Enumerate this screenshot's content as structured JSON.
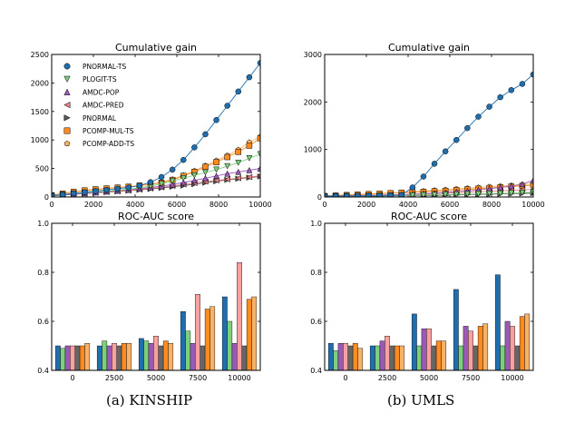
{
  "captions": {
    "left": "(a) KINSHIP",
    "right": "(b) UMLS"
  },
  "legend": [
    "PNORMAL-TS",
    "PLOGIT-TS",
    "AMDC-POP",
    "AMDC-PRED",
    "PNORMAL",
    "PCOMP-MUL-TS",
    "PCOMP-ADD-TS"
  ],
  "chart_data": [
    {
      "panel": "kinship-gain",
      "type": "line",
      "title": "Cumulative gain",
      "xlim": [
        0,
        10000
      ],
      "ylim": [
        0,
        2500
      ],
      "xticks": [
        "0",
        "2000",
        "4000",
        "6000",
        "8000",
        "10000"
      ],
      "yticks": [
        "0",
        "500",
        "1000",
        "1500",
        "2000",
        "2500"
      ],
      "legend_loc": "upper-left",
      "x": [
        0,
        526,
        1053,
        1579,
        2105,
        2632,
        3158,
        3684,
        4211,
        4737,
        5263,
        5789,
        6316,
        6842,
        7368,
        7895,
        8421,
        8947,
        9474,
        10000
      ],
      "series": [
        {
          "name": "PNORMAL-TS",
          "color": "#1f6faf",
          "marker": "circle",
          "values": [
            20,
            40,
            65,
            85,
            105,
            125,
            145,
            165,
            200,
            260,
            350,
            480,
            650,
            870,
            1100,
            1350,
            1600,
            1850,
            2100,
            2350
          ]
        },
        {
          "name": "PLOGIT-TS",
          "color": "#7cd07c",
          "marker": "tri-down",
          "values": [
            20,
            40,
            60,
            75,
            90,
            105,
            120,
            135,
            160,
            190,
            230,
            280,
            330,
            380,
            430,
            480,
            540,
            600,
            680,
            750
          ]
        },
        {
          "name": "AMDC-POP",
          "color": "#9b59b6",
          "marker": "tri-up",
          "values": [
            20,
            35,
            50,
            65,
            80,
            95,
            110,
            125,
            145,
            165,
            190,
            220,
            255,
            290,
            330,
            370,
            410,
            440,
            470,
            500
          ]
        },
        {
          "name": "AMDC-PRED",
          "color": "#e88080",
          "marker": "tri-left",
          "values": [
            20,
            35,
            50,
            60,
            75,
            90,
            100,
            115,
            130,
            150,
            170,
            195,
            220,
            245,
            270,
            290,
            310,
            330,
            350,
            370
          ]
        },
        {
          "name": "PNORMAL",
          "color": "#555555",
          "marker": "tri-right",
          "values": [
            20,
            35,
            45,
            60,
            70,
            85,
            95,
            110,
            125,
            140,
            160,
            180,
            200,
            225,
            250,
            275,
            300,
            320,
            340,
            360
          ]
        },
        {
          "name": "PCOMP-MUL-TS",
          "color": "#ff8a1e",
          "marker": "square",
          "values": [
            30,
            60,
            90,
            115,
            135,
            150,
            165,
            180,
            200,
            220,
            250,
            300,
            370,
            440,
            530,
            610,
            700,
            790,
            900,
            1030
          ]
        },
        {
          "name": "PCOMP-ADD-TS",
          "color": "#f7b267",
          "marker": "pentagon",
          "values": [
            30,
            60,
            90,
            115,
            135,
            150,
            165,
            180,
            200,
            225,
            260,
            310,
            380,
            460,
            550,
            640,
            730,
            830,
            960,
            1060
          ]
        }
      ]
    },
    {
      "panel": "umls-gain",
      "type": "line",
      "title": "Cumulative gain",
      "xlim": [
        0,
        10000
      ],
      "ylim": [
        0,
        3000
      ],
      "xticks": [
        "0",
        "2000",
        "4000",
        "6000",
        "8000",
        "10000"
      ],
      "yticks": [
        "0",
        "1000",
        "2000",
        "3000"
      ],
      "x": [
        0,
        526,
        1053,
        1579,
        2105,
        2632,
        3158,
        3684,
        4211,
        4737,
        5263,
        5789,
        6316,
        6842,
        7368,
        7895,
        8421,
        8947,
        9474,
        10000
      ],
      "series": [
        {
          "name": "PNORMAL-TS",
          "color": "#1f6faf",
          "marker": "circle",
          "values": [
            20,
            20,
            20,
            25,
            25,
            30,
            35,
            40,
            200,
            430,
            700,
            960,
            1200,
            1450,
            1690,
            1900,
            2100,
            2250,
            2380,
            2580
          ]
        },
        {
          "name": "PLOGIT-TS",
          "color": "#7cd07c",
          "marker": "tri-down",
          "values": [
            15,
            15,
            20,
            20,
            25,
            25,
            30,
            30,
            35,
            40,
            45,
            50,
            55,
            60,
            65,
            70,
            75,
            80,
            90,
            100
          ]
        },
        {
          "name": "AMDC-POP",
          "color": "#9b59b6",
          "marker": "tri-up",
          "values": [
            15,
            20,
            25,
            30,
            35,
            40,
            45,
            50,
            60,
            70,
            80,
            95,
            110,
            130,
            150,
            175,
            200,
            230,
            270,
            350
          ]
        },
        {
          "name": "AMDC-PRED",
          "color": "#e88080",
          "marker": "tri-left",
          "values": [
            15,
            20,
            25,
            30,
            35,
            40,
            45,
            50,
            55,
            60,
            70,
            80,
            90,
            100,
            110,
            120,
            130,
            140,
            150,
            160
          ]
        },
        {
          "name": "PNORMAL",
          "color": "#555555",
          "marker": "tri-right",
          "values": [
            10,
            10,
            15,
            15,
            20,
            20,
            25,
            25,
            30,
            30,
            35,
            40,
            45,
            50,
            55,
            60,
            65,
            70,
            75,
            80
          ]
        },
        {
          "name": "PCOMP-MUL-TS",
          "color": "#ff8a1e",
          "marker": "square",
          "values": [
            20,
            30,
            40,
            50,
            60,
            70,
            80,
            90,
            100,
            110,
            120,
            130,
            145,
            160,
            175,
            190,
            205,
            220,
            235,
            250
          ]
        },
        {
          "name": "PCOMP-ADD-TS",
          "color": "#f7b267",
          "marker": "pentagon",
          "values": [
            25,
            35,
            45,
            55,
            65,
            75,
            85,
            95,
            110,
            125,
            140,
            155,
            170,
            185,
            200,
            215,
            230,
            245,
            260,
            275
          ]
        }
      ]
    },
    {
      "panel": "kinship-auc",
      "type": "bar",
      "title": "ROC-AUC score",
      "categories": [
        "0",
        "2500",
        "5000",
        "7500",
        "10000"
      ],
      "ylim": [
        0.4,
        1.0
      ],
      "yticks": [
        "0.4",
        "0.6",
        "0.8",
        "1.0"
      ],
      "series": [
        {
          "name": "PNORMAL-TS",
          "color": "#1f6faf",
          "values": [
            0.5,
            0.5,
            0.53,
            0.64,
            0.7
          ]
        },
        {
          "name": "PLOGIT-TS",
          "color": "#7cd07c",
          "values": [
            0.49,
            0.52,
            0.52,
            0.56,
            0.6
          ]
        },
        {
          "name": "AMDC-POP",
          "color": "#9b59b6",
          "values": [
            0.5,
            0.5,
            0.51,
            0.51,
            0.51
          ]
        },
        {
          "name": "AMDC-PRED",
          "color": "#f7a1a1",
          "values": [
            0.5,
            0.51,
            0.54,
            0.71,
            0.84
          ]
        },
        {
          "name": "PNORMAL",
          "color": "#666666",
          "values": [
            0.5,
            0.5,
            0.5,
            0.5,
            0.5
          ]
        },
        {
          "name": "PCOMP-MUL-TS",
          "color": "#ff8a1e",
          "values": [
            0.5,
            0.51,
            0.52,
            0.65,
            0.69
          ]
        },
        {
          "name": "PCOMP-ADD-TS",
          "color": "#f7b267",
          "values": [
            0.51,
            0.51,
            0.51,
            0.66,
            0.7
          ]
        }
      ]
    },
    {
      "panel": "umls-auc",
      "type": "bar",
      "title": "ROC-AUC score",
      "categories": [
        "0",
        "2500",
        "5000",
        "7500",
        "10000"
      ],
      "ylim": [
        0.4,
        1.0
      ],
      "yticks": [
        "0.4",
        "0.6",
        "0.8",
        "1.0"
      ],
      "series": [
        {
          "name": "PNORMAL-TS",
          "color": "#1f6faf",
          "values": [
            0.51,
            0.5,
            0.63,
            0.73,
            0.79
          ]
        },
        {
          "name": "PLOGIT-TS",
          "color": "#7cd07c",
          "values": [
            0.48,
            0.5,
            0.5,
            0.5,
            0.5
          ]
        },
        {
          "name": "AMDC-POP",
          "color": "#9b59b6",
          "values": [
            0.51,
            0.52,
            0.57,
            0.58,
            0.6
          ]
        },
        {
          "name": "AMDC-PRED",
          "color": "#f7a1a1",
          "values": [
            0.51,
            0.54,
            0.57,
            0.56,
            0.58
          ]
        },
        {
          "name": "PNORMAL",
          "color": "#666666",
          "values": [
            0.5,
            0.5,
            0.5,
            0.5,
            0.5
          ]
        },
        {
          "name": "PCOMP-MUL-TS",
          "color": "#ff8a1e",
          "values": [
            0.51,
            0.5,
            0.52,
            0.58,
            0.62
          ]
        },
        {
          "name": "PCOMP-ADD-TS",
          "color": "#f7b267",
          "values": [
            0.49,
            0.5,
            0.52,
            0.59,
            0.63
          ]
        }
      ]
    }
  ]
}
